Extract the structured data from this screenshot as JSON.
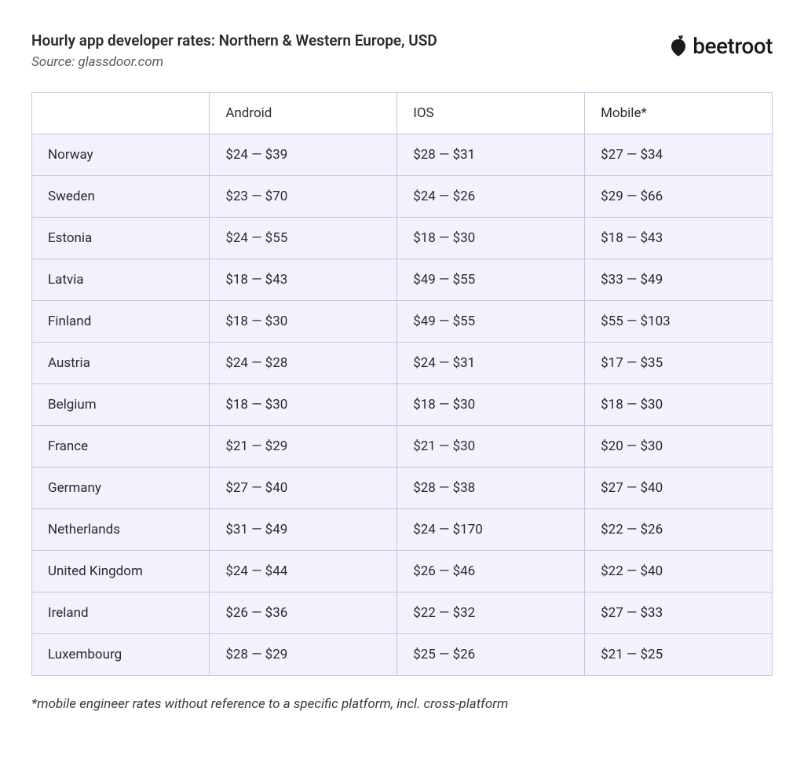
{
  "header": {
    "title": "Hourly app developer rates: Northern & Western Europe, USD",
    "source": "Source: glassdoor.com"
  },
  "logo": {
    "text": "beetroot",
    "icon_color": "#1a1a1a"
  },
  "table": {
    "type": "table",
    "border_color": "#c7c4e8",
    "header_bg": "#ffffff",
    "row_bg": "#f3f1fc",
    "text_color": "#2a2a2e",
    "font_size": 17,
    "columns": [
      "",
      "Android",
      "IOS",
      "Mobile*"
    ],
    "rows": [
      [
        "Norway",
        "$24 — $39",
        "$28 — $31",
        "$27 — $34"
      ],
      [
        "Sweden",
        "$23 — $70",
        "$24 — $26",
        "$29 — $66"
      ],
      [
        "Estonia",
        "$24 — $55",
        "$18 — $30",
        "$18 — $43"
      ],
      [
        "Latvia",
        "$18 — $43",
        "$49 — $55",
        "$33 — $49"
      ],
      [
        "Finland",
        "$18 — $30",
        "$49 — $55",
        "$55 — $103"
      ],
      [
        "Austria",
        "$24 — $28",
        "$24 — $31",
        "$17 — $35"
      ],
      [
        "Belgium",
        "$18 — $30",
        "$18 — $30",
        "$18 — $30"
      ],
      [
        "France",
        "$21 — $29",
        "$21 — $30",
        "$20 — $30"
      ],
      [
        "Germany",
        "$27 — $40",
        "$28 — $38",
        "$27 — $40"
      ],
      [
        "Netherlands",
        "$31 — $49",
        "$24 — $170",
        "$22 — $26"
      ],
      [
        "United Kingdom",
        "$24 — $44",
        "$26 — $46",
        "$22 — $40"
      ],
      [
        "Ireland",
        "$26 — $36",
        "$22 — $32",
        "$27 — $33"
      ],
      [
        "Luxembourg",
        "$28 — $29",
        "$25 — $26",
        "$21 — $25"
      ]
    ]
  },
  "footnote": "*mobile engineer rates without reference to a specific platform, incl. cross-platform"
}
